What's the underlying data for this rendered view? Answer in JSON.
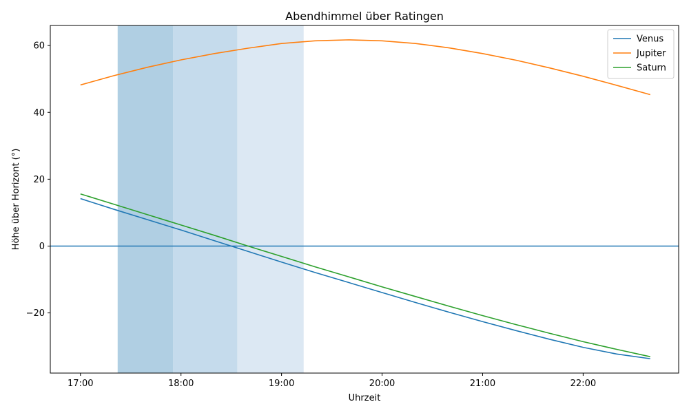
{
  "chart_data": {
    "type": "line",
    "title": "Abendhimmel über Ratingen",
    "xlabel": "Uhrzeit",
    "ylabel": "Höhe über Horizont (°)",
    "x_ticks": [
      "17:00",
      "18:00",
      "19:00",
      "20:00",
      "21:00",
      "22:00"
    ],
    "y_ticks": [
      -20,
      0,
      20,
      40,
      60
    ],
    "xlim_hours": [
      16.7,
      22.95
    ],
    "ylim": [
      -38,
      66
    ],
    "grid": false,
    "legend_position": "top-right",
    "horizon_line": {
      "y": 0,
      "color": "#1f77b4"
    },
    "twilight_bands": [
      {
        "from": 17.37,
        "to": 17.92,
        "color": "#b0cfe3"
      },
      {
        "from": 17.92,
        "to": 18.56,
        "color": "#c5dbec"
      },
      {
        "from": 18.56,
        "to": 19.22,
        "color": "#dce8f3"
      }
    ],
    "x": [
      17.0,
      17.333,
      17.667,
      18.0,
      18.333,
      18.667,
      19.0,
      19.333,
      19.667,
      20.0,
      20.333,
      20.667,
      21.0,
      21.333,
      21.667,
      22.0,
      22.333,
      22.667
    ],
    "series": [
      {
        "name": "Venus",
        "color": "#1f77b4",
        "values": [
          14.2,
          11.0,
          7.9,
          4.8,
          1.6,
          -1.6,
          -4.8,
          -7.9,
          -10.9,
          -13.9,
          -16.9,
          -19.8,
          -22.6,
          -25.3,
          -27.9,
          -30.3,
          -32.3,
          -33.7
        ]
      },
      {
        "name": "Jupiter",
        "color": "#ff7f0e",
        "values": [
          48.2,
          51.0,
          53.5,
          55.7,
          57.6,
          59.2,
          60.6,
          61.4,
          61.7,
          61.4,
          60.6,
          59.3,
          57.6,
          55.6,
          53.3,
          50.8,
          48.1,
          45.3
        ]
      },
      {
        "name": "Saturn",
        "color": "#2ca02c",
        "values": [
          15.6,
          12.5,
          9.4,
          6.3,
          3.2,
          0.0,
          -3.1,
          -6.2,
          -9.2,
          -12.2,
          -15.1,
          -18.0,
          -20.8,
          -23.5,
          -26.1,
          -28.6,
          -30.9,
          -33.1
        ]
      }
    ]
  }
}
